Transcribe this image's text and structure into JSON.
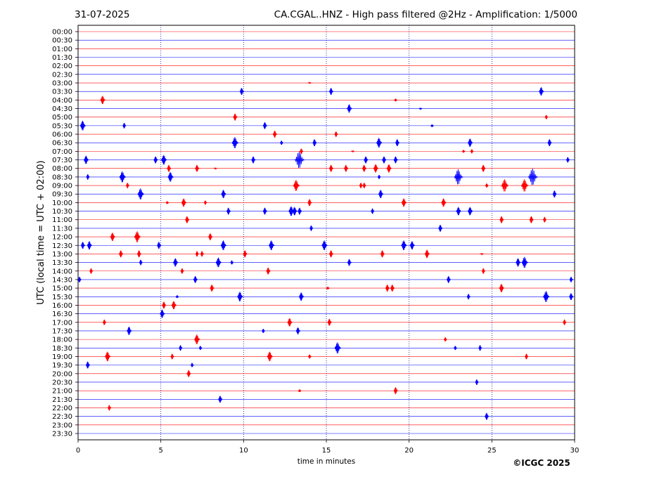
{
  "header": {
    "date": "31-07-2025",
    "title": "CA.CGAL..HNZ - High pass filtered @2Hz - Amplification: 1/5000"
  },
  "footer": {
    "copyright": "©ICGC 2025"
  },
  "colors": {
    "red": "#ff0000",
    "blue": "#0000ff",
    "frame": "#000000",
    "grid": "#0000aa"
  },
  "chart_data": {
    "type": "line",
    "title": "CA.CGAL..HNZ - High pass filtered @2Hz - Amplification: 1/5000",
    "xlabel": "time in minutes",
    "ylabel": "UTC (local time = UTC + 02:00)",
    "xlim": [
      0,
      30
    ],
    "xticks": [
      0,
      5,
      10,
      15,
      20,
      25,
      30
    ],
    "grid": "vertical dotted lines at 5, 10, 15, 20, 25 minutes",
    "traces": [
      "00:00",
      "00:30",
      "01:00",
      "01:30",
      "02:00",
      "02:30",
      "03:00",
      "03:30",
      "04:00",
      "04:30",
      "05:00",
      "05:30",
      "06:00",
      "06:30",
      "07:00",
      "07:30",
      "08:00",
      "08:30",
      "09:00",
      "09:30",
      "10:00",
      "10:30",
      "11:00",
      "11:30",
      "12:00",
      "12:30",
      "13:00",
      "13:30",
      "14:00",
      "14:30",
      "15:00",
      "15:30",
      "16:00",
      "16:30",
      "17:00",
      "17:30",
      "18:00",
      "18:30",
      "19:00",
      "19:30",
      "20:00",
      "20:30",
      "21:00",
      "21:30",
      "22:00",
      "22:30",
      "23:00",
      "23:30"
    ],
    "trace_colors": "alternating red (full hour) and blue (half hour)",
    "events": [
      {
        "trace": "03:00",
        "minute": 14.0,
        "amp": 1
      },
      {
        "trace": "03:30",
        "minute": 9.9,
        "amp": 5
      },
      {
        "trace": "03:30",
        "minute": 15.3,
        "amp": 5
      },
      {
        "trace": "03:30",
        "minute": 28.0,
        "amp": 6
      },
      {
        "trace": "04:00",
        "minute": 1.5,
        "amp": 6
      },
      {
        "trace": "04:00",
        "minute": 19.2,
        "amp": 2
      },
      {
        "trace": "04:30",
        "minute": 16.4,
        "amp": 6
      },
      {
        "trace": "04:30",
        "minute": 20.7,
        "amp": 1
      },
      {
        "trace": "05:00",
        "minute": 9.5,
        "amp": 5
      },
      {
        "trace": "05:00",
        "minute": 28.3,
        "amp": 3
      },
      {
        "trace": "05:30",
        "minute": 0.3,
        "amp": 7
      },
      {
        "trace": "05:30",
        "minute": 2.8,
        "amp": 4
      },
      {
        "trace": "05:30",
        "minute": 11.3,
        "amp": 5
      },
      {
        "trace": "05:30",
        "minute": 21.4,
        "amp": 2
      },
      {
        "trace": "06:00",
        "minute": 11.9,
        "amp": 5
      },
      {
        "trace": "06:00",
        "minute": 15.6,
        "amp": 4
      },
      {
        "trace": "06:30",
        "minute": 9.5,
        "amp": 8
      },
      {
        "trace": "06:30",
        "minute": 12.3,
        "amp": 3
      },
      {
        "trace": "06:30",
        "minute": 14.3,
        "amp": 5
      },
      {
        "trace": "06:30",
        "minute": 18.2,
        "amp": 7
      },
      {
        "trace": "06:30",
        "minute": 19.3,
        "amp": 5
      },
      {
        "trace": "06:30",
        "minute": 23.7,
        "amp": 6
      },
      {
        "trace": "06:30",
        "minute": 28.5,
        "amp": 5
      },
      {
        "trace": "07:00",
        "minute": 13.5,
        "amp": 4
      },
      {
        "trace": "07:00",
        "minute": 16.6,
        "amp": 1
      },
      {
        "trace": "07:00",
        "minute": 23.3,
        "amp": 2
      },
      {
        "trace": "07:00",
        "minute": 23.8,
        "amp": 3
      },
      {
        "trace": "07:30",
        "minute": 0.5,
        "amp": 6
      },
      {
        "trace": "07:30",
        "minute": 4.7,
        "amp": 5
      },
      {
        "trace": "07:30",
        "minute": 5.2,
        "amp": 7
      },
      {
        "trace": "07:30",
        "minute": 10.6,
        "amp": 5
      },
      {
        "trace": "07:30",
        "minute": 13.4,
        "amp": 12
      },
      {
        "trace": "07:30",
        "minute": 17.4,
        "amp": 5
      },
      {
        "trace": "07:30",
        "minute": 18.5,
        "amp": 5
      },
      {
        "trace": "07:30",
        "minute": 19.2,
        "amp": 5
      },
      {
        "trace": "07:30",
        "minute": 29.6,
        "amp": 4
      },
      {
        "trace": "08:00",
        "minute": 5.5,
        "amp": 5
      },
      {
        "trace": "08:00",
        "minute": 7.2,
        "amp": 5
      },
      {
        "trace": "08:00",
        "minute": 8.3,
        "amp": 1
      },
      {
        "trace": "08:00",
        "minute": 15.3,
        "amp": 5
      },
      {
        "trace": "08:00",
        "minute": 16.2,
        "amp": 5
      },
      {
        "trace": "08:00",
        "minute": 17.3,
        "amp": 5
      },
      {
        "trace": "08:00",
        "minute": 18.0,
        "amp": 6
      },
      {
        "trace": "08:00",
        "minute": 18.8,
        "amp": 6
      },
      {
        "trace": "08:00",
        "minute": 24.5,
        "amp": 5
      },
      {
        "trace": "08:30",
        "minute": 0.6,
        "amp": 4
      },
      {
        "trace": "08:30",
        "minute": 2.7,
        "amp": 8
      },
      {
        "trace": "08:30",
        "minute": 5.6,
        "amp": 7
      },
      {
        "trace": "08:30",
        "minute": 18.2,
        "amp": 3
      },
      {
        "trace": "08:30",
        "minute": 23.0,
        "amp": 11
      },
      {
        "trace": "08:30",
        "minute": 27.5,
        "amp": 12
      },
      {
        "trace": "09:00",
        "minute": 3.0,
        "amp": 4
      },
      {
        "trace": "09:00",
        "minute": 13.2,
        "amp": 8
      },
      {
        "trace": "09:00",
        "minute": 17.1,
        "amp": 4
      },
      {
        "trace": "09:00",
        "minute": 17.3,
        "amp": 4
      },
      {
        "trace": "09:00",
        "minute": 24.7,
        "amp": 3
      },
      {
        "trace": "09:00",
        "minute": 25.8,
        "amp": 9
      },
      {
        "trace": "09:00",
        "minute": 27.0,
        "amp": 9
      },
      {
        "trace": "09:30",
        "minute": 3.8,
        "amp": 8
      },
      {
        "trace": "09:30",
        "minute": 8.8,
        "amp": 6
      },
      {
        "trace": "09:30",
        "minute": 18.3,
        "amp": 6
      },
      {
        "trace": "09:30",
        "minute": 28.8,
        "amp": 5
      },
      {
        "trace": "10:00",
        "minute": 5.4,
        "amp": 2
      },
      {
        "trace": "10:00",
        "minute": 6.4,
        "amp": 6
      },
      {
        "trace": "10:00",
        "minute": 7.7,
        "amp": 3
      },
      {
        "trace": "10:00",
        "minute": 14.0,
        "amp": 5
      },
      {
        "trace": "10:00",
        "minute": 19.7,
        "amp": 6
      },
      {
        "trace": "10:00",
        "minute": 22.1,
        "amp": 6
      },
      {
        "trace": "10:30",
        "minute": 9.1,
        "amp": 5
      },
      {
        "trace": "10:30",
        "minute": 11.3,
        "amp": 5
      },
      {
        "trace": "10:30",
        "minute": 12.9,
        "amp": 7
      },
      {
        "trace": "10:30",
        "minute": 13.1,
        "amp": 6
      },
      {
        "trace": "10:30",
        "minute": 13.4,
        "amp": 5
      },
      {
        "trace": "10:30",
        "minute": 17.8,
        "amp": 4
      },
      {
        "trace": "10:30",
        "minute": 23.0,
        "amp": 6
      },
      {
        "trace": "10:30",
        "minute": 23.7,
        "amp": 6
      },
      {
        "trace": "11:00",
        "minute": 6.6,
        "amp": 5
      },
      {
        "trace": "11:00",
        "minute": 25.6,
        "amp": 5
      },
      {
        "trace": "11:00",
        "minute": 27.4,
        "amp": 5
      },
      {
        "trace": "11:00",
        "minute": 28.2,
        "amp": 4
      },
      {
        "trace": "11:30",
        "minute": 14.1,
        "amp": 4
      },
      {
        "trace": "11:30",
        "minute": 21.9,
        "amp": 5
      },
      {
        "trace": "12:00",
        "minute": 2.1,
        "amp": 6
      },
      {
        "trace": "12:00",
        "minute": 3.6,
        "amp": 8
      },
      {
        "trace": "12:00",
        "minute": 8.0,
        "amp": 5
      },
      {
        "trace": "12:30",
        "minute": 0.3,
        "amp": 5
      },
      {
        "trace": "12:30",
        "minute": 0.7,
        "amp": 6
      },
      {
        "trace": "12:30",
        "minute": 4.9,
        "amp": 5
      },
      {
        "trace": "12:30",
        "minute": 8.8,
        "amp": 7
      },
      {
        "trace": "12:30",
        "minute": 11.7,
        "amp": 7
      },
      {
        "trace": "12:30",
        "minute": 14.9,
        "amp": 7
      },
      {
        "trace": "12:30",
        "minute": 19.7,
        "amp": 7
      },
      {
        "trace": "12:30",
        "minute": 20.2,
        "amp": 6
      },
      {
        "trace": "13:00",
        "minute": 2.6,
        "amp": 5
      },
      {
        "trace": "13:00",
        "minute": 3.7,
        "amp": 5
      },
      {
        "trace": "13:00",
        "minute": 7.2,
        "amp": 4
      },
      {
        "trace": "13:00",
        "minute": 7.5,
        "amp": 4
      },
      {
        "trace": "13:00",
        "minute": 10.1,
        "amp": 5
      },
      {
        "trace": "13:00",
        "minute": 15.3,
        "amp": 5
      },
      {
        "trace": "13:00",
        "minute": 18.4,
        "amp": 5
      },
      {
        "trace": "13:00",
        "minute": 21.1,
        "amp": 6
      },
      {
        "trace": "13:00",
        "minute": 24.4,
        "amp": 1
      },
      {
        "trace": "13:30",
        "minute": 3.8,
        "amp": 4
      },
      {
        "trace": "13:30",
        "minute": 5.9,
        "amp": 6
      },
      {
        "trace": "13:30",
        "minute": 8.5,
        "amp": 7
      },
      {
        "trace": "13:30",
        "minute": 9.3,
        "amp": 3
      },
      {
        "trace": "13:30",
        "minute": 16.4,
        "amp": 5
      },
      {
        "trace": "13:30",
        "minute": 26.6,
        "amp": 6
      },
      {
        "trace": "13:30",
        "minute": 27.0,
        "amp": 8
      },
      {
        "trace": "14:00",
        "minute": 0.8,
        "amp": 4
      },
      {
        "trace": "14:00",
        "minute": 6.3,
        "amp": 4
      },
      {
        "trace": "14:00",
        "minute": 11.5,
        "amp": 5
      },
      {
        "trace": "14:00",
        "minute": 24.5,
        "amp": 4
      },
      {
        "trace": "14:30",
        "minute": 0.1,
        "amp": 4
      },
      {
        "trace": "14:30",
        "minute": 7.1,
        "amp": 5
      },
      {
        "trace": "14:30",
        "minute": 22.4,
        "amp": 5
      },
      {
        "trace": "14:30",
        "minute": 29.8,
        "amp": 4
      },
      {
        "trace": "15:00",
        "minute": 8.1,
        "amp": 5
      },
      {
        "trace": "15:00",
        "minute": 15.1,
        "amp": 2
      },
      {
        "trace": "15:00",
        "minute": 18.7,
        "amp": 5
      },
      {
        "trace": "15:00",
        "minute": 19.0,
        "amp": 5
      },
      {
        "trace": "15:00",
        "minute": 25.6,
        "amp": 6
      },
      {
        "trace": "15:30",
        "minute": 6.0,
        "amp": 2
      },
      {
        "trace": "15:30",
        "minute": 9.8,
        "amp": 7
      },
      {
        "trace": "15:30",
        "minute": 13.5,
        "amp": 6
      },
      {
        "trace": "15:30",
        "minute": 23.6,
        "amp": 4
      },
      {
        "trace": "15:30",
        "minute": 28.3,
        "amp": 8
      },
      {
        "trace": "15:30",
        "minute": 29.8,
        "amp": 5
      },
      {
        "trace": "16:00",
        "minute": 5.2,
        "amp": 5
      },
      {
        "trace": "16:00",
        "minute": 5.8,
        "amp": 6
      },
      {
        "trace": "16:30",
        "minute": 5.1,
        "amp": 6
      },
      {
        "trace": "17:00",
        "minute": 1.6,
        "amp": 4
      },
      {
        "trace": "17:00",
        "minute": 12.8,
        "amp": 6
      },
      {
        "trace": "17:00",
        "minute": 15.2,
        "amp": 5
      },
      {
        "trace": "17:00",
        "minute": 29.4,
        "amp": 4
      },
      {
        "trace": "17:30",
        "minute": 3.1,
        "amp": 6
      },
      {
        "trace": "17:30",
        "minute": 11.2,
        "amp": 3
      },
      {
        "trace": "17:30",
        "minute": 13.3,
        "amp": 5
      },
      {
        "trace": "18:00",
        "minute": 7.2,
        "amp": 7
      },
      {
        "trace": "18:00",
        "minute": 22.2,
        "amp": 3
      },
      {
        "trace": "18:30",
        "minute": 6.2,
        "amp": 4
      },
      {
        "trace": "18:30",
        "minute": 7.4,
        "amp": 3
      },
      {
        "trace": "18:30",
        "minute": 15.7,
        "amp": 8
      },
      {
        "trace": "18:30",
        "minute": 22.8,
        "amp": 3
      },
      {
        "trace": "18:30",
        "minute": 24.3,
        "amp": 4
      },
      {
        "trace": "19:00",
        "minute": 1.8,
        "amp": 7
      },
      {
        "trace": "19:00",
        "minute": 5.7,
        "amp": 4
      },
      {
        "trace": "19:00",
        "minute": 11.6,
        "amp": 7
      },
      {
        "trace": "19:00",
        "minute": 14.0,
        "amp": 3
      },
      {
        "trace": "19:00",
        "minute": 27.1,
        "amp": 4
      },
      {
        "trace": "19:30",
        "minute": 0.6,
        "amp": 5
      },
      {
        "trace": "19:30",
        "minute": 6.9,
        "amp": 3
      },
      {
        "trace": "20:00",
        "minute": 6.7,
        "amp": 5
      },
      {
        "trace": "20:30",
        "minute": 24.1,
        "amp": 4
      },
      {
        "trace": "21:00",
        "minute": 13.4,
        "amp": 2
      },
      {
        "trace": "21:00",
        "minute": 19.2,
        "amp": 5
      },
      {
        "trace": "21:30",
        "minute": 8.6,
        "amp": 5
      },
      {
        "trace": "22:00",
        "minute": 1.9,
        "amp": 4
      },
      {
        "trace": "22:30",
        "minute": 24.7,
        "amp": 5
      }
    ]
  }
}
